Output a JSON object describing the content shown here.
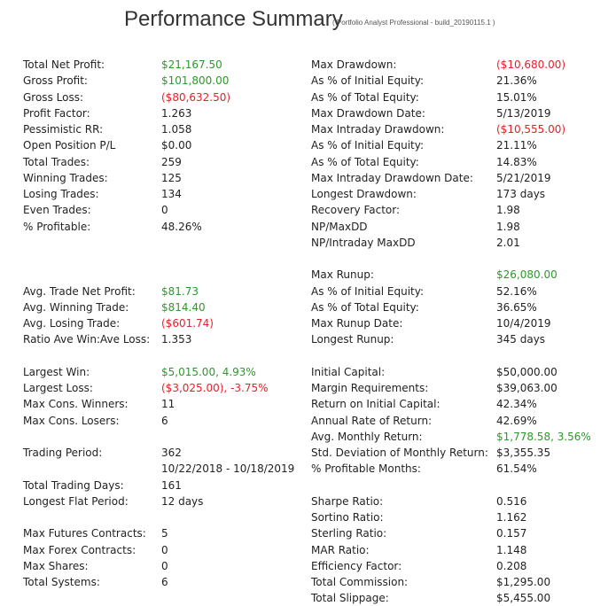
{
  "header": {
    "title": "Performance Summary",
    "subtitle": "( Portfolio Analyst Professional - build_20190115.1 )"
  },
  "colors": {
    "positive": "#2a9a2a",
    "negative": "#e8202a",
    "neutral": "#222222"
  },
  "left": [
    {
      "label": "Total Net Profit:",
      "value": "$21,167.50",
      "tone": "pos"
    },
    {
      "label": "Gross Profit:",
      "value": "$101,800.00",
      "tone": "pos"
    },
    {
      "label": "Gross Loss:",
      "value": "($80,632.50)",
      "tone": "neg"
    },
    {
      "label": "Profit Factor:",
      "value": "1.263",
      "tone": "neu"
    },
    {
      "label": "Pessimistic RR:",
      "value": "1.058",
      "tone": "neu"
    },
    {
      "label": "Open Position P/L",
      "value": "$0.00",
      "tone": "neu"
    },
    {
      "label": "Total Trades:",
      "value": "259",
      "tone": "neu"
    },
    {
      "label": "Winning Trades:",
      "value": "125",
      "tone": "neu"
    },
    {
      "label": "Losing Trades:",
      "value": "134",
      "tone": "neu"
    },
    {
      "label": "Even Trades:",
      "value": "0",
      "tone": "neu"
    },
    {
      "label": "% Profitable:",
      "value": "48.26%",
      "tone": "neu"
    },
    {
      "label": "Avg. Trade Net Profit:",
      "value": "$81.73",
      "tone": "pos"
    },
    {
      "label": "Avg. Winning Trade:",
      "value": "$814.40",
      "tone": "pos"
    },
    {
      "label": "Avg. Losing Trade:",
      "value": "($601.74)",
      "tone": "neg"
    },
    {
      "label": "Ratio Ave Win:Ave Loss:",
      "value": "1.353",
      "tone": "neu"
    },
    {
      "label": "Largest Win:",
      "value": "$5,015.00, 4.93%",
      "tone": "pos"
    },
    {
      "label": "Largest Loss:",
      "value": "($3,025.00), -3.75%",
      "tone": "neg"
    },
    {
      "label": "Max Cons. Winners:",
      "value": "11",
      "tone": "neu"
    },
    {
      "label": "Max Cons. Losers:",
      "value": "6",
      "tone": "neu"
    },
    {
      "label": "Trading Period:",
      "value": "362",
      "tone": "neu"
    },
    {
      "label": "",
      "value": "10/22/2018 - 10/18/2019",
      "tone": "neu"
    },
    {
      "label": "Total Trading Days:",
      "value": "161",
      "tone": "neu"
    },
    {
      "label": "Longest Flat Period:",
      "value": "12 days",
      "tone": "neu"
    },
    {
      "label": "Max Futures Contracts:",
      "value": "5",
      "tone": "neu"
    },
    {
      "label": "Max Forex Contracts:",
      "value": "0",
      "tone": "neu"
    },
    {
      "label": "Max Shares:",
      "value": "0",
      "tone": "neu"
    },
    {
      "label": "Total Systems:",
      "value": "6",
      "tone": "neu"
    }
  ],
  "right": [
    {
      "label": "Max Drawdown:",
      "value": "($10,680.00)",
      "tone": "neg"
    },
    {
      "label": "As % of Initial Equity:",
      "value": "21.36%",
      "tone": "neu"
    },
    {
      "label": "As % of Total Equity:",
      "value": "15.01%",
      "tone": "neu"
    },
    {
      "label": "Max Drawdown Date:",
      "value": "5/13/2019",
      "tone": "neu"
    },
    {
      "label": "Max Intraday Drawdown:",
      "value": "($10,555.00)",
      "tone": "neg"
    },
    {
      "label": "As % of Initial Equity:",
      "value": "21.11%",
      "tone": "neu"
    },
    {
      "label": "As % of Total Equity:",
      "value": "14.83%",
      "tone": "neu"
    },
    {
      "label": "Max Intraday Drawdown Date:",
      "value": "5/21/2019",
      "tone": "neu"
    },
    {
      "label": "Longest Drawdown:",
      "value": "173 days",
      "tone": "neu"
    },
    {
      "label": "Recovery Factor:",
      "value": "1.98",
      "tone": "neu"
    },
    {
      "label": "NP/MaxDD",
      "value": "1.98",
      "tone": "neu"
    },
    {
      "label": "NP/Intraday MaxDD",
      "value": "2.01",
      "tone": "neu"
    },
    {
      "label": "Max Runup:",
      "value": "$26,080.00",
      "tone": "pos"
    },
    {
      "label": "As % of Initial Equity:",
      "value": "52.16%",
      "tone": "neu"
    },
    {
      "label": "As % of Total Equity:",
      "value": "36.65%",
      "tone": "neu"
    },
    {
      "label": "Max Runup Date:",
      "value": "10/4/2019",
      "tone": "neu"
    },
    {
      "label": "Longest Runup:",
      "value": "345 days",
      "tone": "neu"
    },
    {
      "label": "Initial Capital:",
      "value": "$50,000.00",
      "tone": "neu"
    },
    {
      "label": "Margin Requirements:",
      "value": "$39,063.00",
      "tone": "neu"
    },
    {
      "label": "Return on Initial Capital:",
      "value": "42.34%",
      "tone": "neu"
    },
    {
      "label": "Annual Rate of Return:",
      "value": "42.69%",
      "tone": "neu"
    },
    {
      "label": "Avg. Monthly Return:",
      "value": "$1,778.58, 3.56%",
      "tone": "pos"
    },
    {
      "label": "Std. Deviation of Monthly Return:",
      "value": "$3,355.35",
      "tone": "neu"
    },
    {
      "label": "% Profitable Months:",
      "value": "61.54%",
      "tone": "neu"
    },
    {
      "label": "Sharpe Ratio:",
      "value": "0.516",
      "tone": "neu"
    },
    {
      "label": "Sortino Ratio:",
      "value": "1.162",
      "tone": "neu"
    },
    {
      "label": "Sterling Ratio:",
      "value": "0.157",
      "tone": "neu"
    },
    {
      "label": "MAR Ratio:",
      "value": "1.148",
      "tone": "neu"
    },
    {
      "label": "Efficiency Factor:",
      "value": "0.208",
      "tone": "neu"
    },
    {
      "label": "Total Commission:",
      "value": "$1,295.00",
      "tone": "neu"
    },
    {
      "label": "Total Slippage:",
      "value": "$5,455.00",
      "tone": "neu"
    }
  ]
}
